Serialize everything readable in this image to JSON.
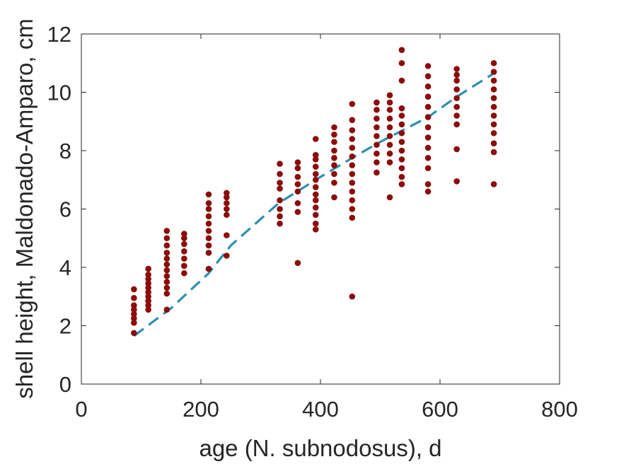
{
  "chart_data": {
    "type": "scatter",
    "title": "",
    "xlabel": "age (N. subnodosus), d",
    "ylabel": "shell height, Maldonado-Amparo, cm",
    "xlim": [
      0,
      800
    ],
    "ylim": [
      0,
      12
    ],
    "xticks": [
      "0",
      "200",
      "400",
      "600",
      "800"
    ],
    "yticks": [
      "0",
      "2",
      "4",
      "6",
      "8",
      "10",
      "12"
    ],
    "grid": false,
    "legend": "none",
    "colors": {
      "points": "#8b0d0a",
      "fit": "#2a8fb3",
      "axes": "#262626"
    },
    "series": [
      {
        "style": "points",
        "points": [
          [
            88,
            1.75
          ],
          [
            88,
            2.1
          ],
          [
            88,
            2.25
          ],
          [
            88,
            2.4
          ],
          [
            88,
            2.55
          ],
          [
            88,
            2.7
          ],
          [
            88,
            2.95
          ],
          [
            88,
            3.25
          ],
          [
            112,
            2.55
          ],
          [
            112,
            2.7
          ],
          [
            112,
            2.85
          ],
          [
            112,
            3.0
          ],
          [
            112,
            3.15
          ],
          [
            112,
            3.3
          ],
          [
            112,
            3.45
          ],
          [
            112,
            3.6
          ],
          [
            112,
            3.75
          ],
          [
            112,
            3.95
          ],
          [
            143,
            2.55
          ],
          [
            143,
            3.1
          ],
          [
            143,
            3.3
          ],
          [
            143,
            3.5
          ],
          [
            143,
            3.7
          ],
          [
            143,
            3.9
          ],
          [
            143,
            4.1
          ],
          [
            143,
            4.3
          ],
          [
            143,
            4.5
          ],
          [
            143,
            4.75
          ],
          [
            143,
            5.0
          ],
          [
            143,
            5.25
          ],
          [
            172,
            3.8
          ],
          [
            172,
            4.05
          ],
          [
            172,
            4.3
          ],
          [
            172,
            4.55
          ],
          [
            172,
            4.8
          ],
          [
            172,
            5.0
          ],
          [
            172,
            5.15
          ],
          [
            213,
            3.95
          ],
          [
            213,
            4.5
          ],
          [
            213,
            4.75
          ],
          [
            213,
            5.0
          ],
          [
            213,
            5.25
          ],
          [
            213,
            5.5
          ],
          [
            213,
            5.75
          ],
          [
            213,
            6.0
          ],
          [
            213,
            6.2
          ],
          [
            213,
            6.5
          ],
          [
            243,
            4.4
          ],
          [
            243,
            5.1
          ],
          [
            243,
            5.8
          ],
          [
            243,
            6.0
          ],
          [
            243,
            6.2
          ],
          [
            243,
            6.4
          ],
          [
            243,
            6.55
          ],
          [
            332,
            5.5
          ],
          [
            332,
            5.75
          ],
          [
            332,
            6.0
          ],
          [
            332,
            6.3
          ],
          [
            332,
            6.7
          ],
          [
            332,
            6.9
          ],
          [
            332,
            7.2
          ],
          [
            332,
            7.55
          ],
          [
            362,
            4.15
          ],
          [
            362,
            5.9
          ],
          [
            362,
            6.2
          ],
          [
            362,
            6.6
          ],
          [
            362,
            6.85
          ],
          [
            362,
            7.1
          ],
          [
            362,
            7.4
          ],
          [
            362,
            7.6
          ],
          [
            392,
            5.3
          ],
          [
            392,
            5.5
          ],
          [
            392,
            5.8
          ],
          [
            392,
            6.05
          ],
          [
            392,
            6.3
          ],
          [
            392,
            6.5
          ],
          [
            392,
            6.75
          ],
          [
            392,
            7.0
          ],
          [
            392,
            7.2
          ],
          [
            392,
            7.45
          ],
          [
            392,
            7.7
          ],
          [
            392,
            7.85
          ],
          [
            392,
            8.4
          ],
          [
            423,
            6.4
          ],
          [
            423,
            6.9
          ],
          [
            423,
            7.2
          ],
          [
            423,
            7.5
          ],
          [
            423,
            7.75
          ],
          [
            423,
            8.0
          ],
          [
            423,
            8.3
          ],
          [
            423,
            8.55
          ],
          [
            423,
            8.8
          ],
          [
            453,
            3.0
          ],
          [
            453,
            5.7
          ],
          [
            453,
            6.0
          ],
          [
            453,
            6.3
          ],
          [
            453,
            6.6
          ],
          [
            453,
            6.9
          ],
          [
            453,
            7.2
          ],
          [
            453,
            7.5
          ],
          [
            453,
            7.8
          ],
          [
            453,
            8.1
          ],
          [
            453,
            8.4
          ],
          [
            453,
            8.7
          ],
          [
            453,
            9.05
          ],
          [
            453,
            9.6
          ],
          [
            494,
            7.25
          ],
          [
            494,
            7.6
          ],
          [
            494,
            7.9
          ],
          [
            494,
            8.2
          ],
          [
            494,
            8.5
          ],
          [
            494,
            8.8
          ],
          [
            494,
            9.1
          ],
          [
            494,
            9.4
          ],
          [
            494,
            9.65
          ],
          [
            516,
            6.4
          ],
          [
            516,
            7.6
          ],
          [
            516,
            7.9
          ],
          [
            516,
            8.2
          ],
          [
            516,
            8.5
          ],
          [
            516,
            8.8
          ],
          [
            516,
            9.1
          ],
          [
            516,
            9.4
          ],
          [
            516,
            9.65
          ],
          [
            516,
            9.9
          ],
          [
            536,
            6.85
          ],
          [
            536,
            7.1
          ],
          [
            536,
            7.4
          ],
          [
            536,
            7.7
          ],
          [
            536,
            8.0
          ],
          [
            536,
            8.3
          ],
          [
            536,
            8.6
          ],
          [
            536,
            8.9
          ],
          [
            536,
            9.2
          ],
          [
            536,
            9.45
          ],
          [
            536,
            10.4
          ],
          [
            536,
            11.0
          ],
          [
            536,
            11.45
          ],
          [
            580,
            6.6
          ],
          [
            580,
            6.85
          ],
          [
            580,
            7.4
          ],
          [
            580,
            7.75
          ],
          [
            580,
            8.1
          ],
          [
            580,
            8.45
          ],
          [
            580,
            8.8
          ],
          [
            580,
            9.15
          ],
          [
            580,
            9.5
          ],
          [
            580,
            9.85
          ],
          [
            580,
            10.2
          ],
          [
            580,
            10.55
          ],
          [
            580,
            10.9
          ],
          [
            628,
            6.95
          ],
          [
            628,
            8.05
          ],
          [
            628,
            8.9
          ],
          [
            628,
            9.2
          ],
          [
            628,
            9.5
          ],
          [
            628,
            9.8
          ],
          [
            628,
            10.1
          ],
          [
            628,
            10.4
          ],
          [
            628,
            10.6
          ],
          [
            628,
            10.8
          ],
          [
            690,
            6.85
          ],
          [
            690,
            7.95
          ],
          [
            690,
            8.25
          ],
          [
            690,
            8.6
          ],
          [
            690,
            8.9
          ],
          [
            690,
            9.2
          ],
          [
            690,
            9.5
          ],
          [
            690,
            9.8
          ],
          [
            690,
            10.1
          ],
          [
            690,
            10.4
          ],
          [
            690,
            10.7
          ],
          [
            690,
            11.0
          ]
        ]
      },
      {
        "style": "dashed-line",
        "points": [
          [
            88,
            1.65
          ],
          [
            150,
            2.6
          ],
          [
            213,
            3.8
          ],
          [
            250,
            4.75
          ],
          [
            330,
            6.2
          ],
          [
            400,
            7.1
          ],
          [
            453,
            7.75
          ],
          [
            500,
            8.3
          ],
          [
            580,
            9.15
          ],
          [
            628,
            9.85
          ],
          [
            690,
            10.65
          ]
        ]
      }
    ]
  }
}
